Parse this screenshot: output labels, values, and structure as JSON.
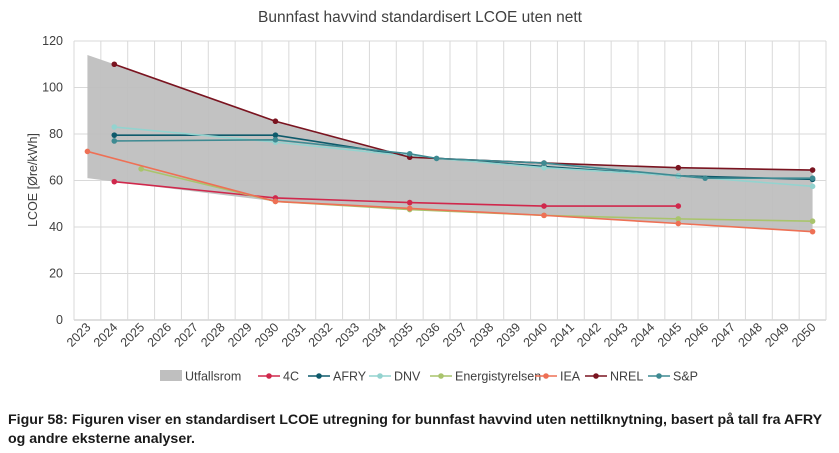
{
  "caption": "Figur 58: Figuren viser en standardisert LCOE utregning for bunnfast havvind uten nettilknytning, basert på tall fra AFRY og andre eksterne analyser.",
  "chart_data": {
    "type": "line",
    "title": "Bunnfast havvind standardisert LCOE uten nett",
    "xlabel": "",
    "ylabel": "LCOE [Øre/kWh]",
    "categories": [
      "2023",
      "2024",
      "2025",
      "2026",
      "2027",
      "2028",
      "2029",
      "2030",
      "2031",
      "2032",
      "2033",
      "2034",
      "2035",
      "2036",
      "2037",
      "2038",
      "2039",
      "2040",
      "2041",
      "2042",
      "2043",
      "2044",
      "2045",
      "2046",
      "2047",
      "2048",
      "2049",
      "2050"
    ],
    "ylim": [
      0,
      120
    ],
    "yticks": [
      0,
      20,
      40,
      60,
      80,
      100,
      120
    ],
    "grid": true,
    "legend_position": "bottom",
    "range_band": {
      "name": "Utfallsrom",
      "color": "#bfbfbf",
      "upper": [
        [
          2023,
          114
        ],
        [
          2024,
          110
        ],
        [
          2030,
          85.5
        ],
        [
          2035,
          70
        ],
        [
          2040,
          68
        ],
        [
          2045,
          65.5
        ],
        [
          2050,
          64.5
        ]
      ],
      "lower": [
        [
          2023,
          61
        ],
        [
          2024,
          59.5
        ],
        [
          2030,
          51
        ],
        [
          2035,
          48
        ],
        [
          2040,
          45
        ],
        [
          2045,
          41.5
        ],
        [
          2050,
          38
        ]
      ]
    },
    "series": [
      {
        "name": "4C",
        "color": "#d0284c",
        "points": [
          [
            2024,
            59.5
          ],
          [
            2030,
            52.5
          ],
          [
            2035,
            50.5
          ],
          [
            2040,
            49
          ],
          [
            2045,
            49
          ]
        ]
      },
      {
        "name": "AFRY",
        "color": "#0e5a6b",
        "points": [
          [
            2024,
            79.5
          ],
          [
            2030,
            79.5
          ],
          [
            2035,
            70.5
          ],
          [
            2040,
            66
          ],
          [
            2045,
            62
          ],
          [
            2050,
            60.5
          ]
        ]
      },
      {
        "name": "DNV",
        "color": "#93d3cf",
        "points": [
          [
            2024,
            83
          ],
          [
            2030,
            76.5
          ],
          [
            2035,
            70.5
          ],
          [
            2040,
            65.5
          ],
          [
            2045,
            62
          ],
          [
            2050,
            57.5
          ]
        ]
      },
      {
        "name": "Energistyrelsen",
        "color": "#a9c46c",
        "points": [
          [
            2025,
            65
          ],
          [
            2030,
            51
          ],
          [
            2035,
            47.5
          ],
          [
            2040,
            45
          ],
          [
            2045,
            43.5
          ],
          [
            2050,
            42.5
          ]
        ]
      },
      {
        "name": "IEA",
        "color": "#ee7055",
        "points": [
          [
            2023,
            72.5
          ],
          [
            2030,
            51
          ],
          [
            2035,
            48
          ],
          [
            2040,
            45
          ],
          [
            2045,
            41.5
          ],
          [
            2050,
            38
          ]
        ]
      },
      {
        "name": "NREL",
        "color": "#7a1420",
        "points": [
          [
            2024,
            110
          ],
          [
            2030,
            85.5
          ],
          [
            2035,
            70
          ],
          [
            2040,
            67.5
          ],
          [
            2045,
            65.5
          ],
          [
            2050,
            64.5
          ]
        ]
      },
      {
        "name": "S&P",
        "color": "#3e8a92",
        "points": [
          [
            2024,
            77
          ],
          [
            2030,
            77.5
          ],
          [
            2035,
            71.5
          ],
          [
            2036,
            69.5
          ],
          [
            2040,
            67.5
          ],
          [
            2046,
            61
          ],
          [
            2050,
            61
          ]
        ]
      }
    ]
  }
}
